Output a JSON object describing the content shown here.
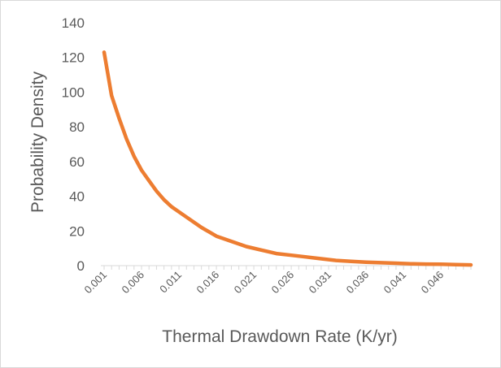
{
  "chart_data": {
    "type": "line",
    "title": "",
    "xlabel": "Thermal Drawdown Rate (K/yr)",
    "ylabel": "Probability Density",
    "ylim": [
      0,
      140
    ],
    "yticks": [
      "0",
      "20",
      "40",
      "60",
      "80",
      "100",
      "120",
      "140"
    ],
    "xlim": [
      0.001,
      0.05
    ],
    "xticks": [
      "0.001",
      "0.006",
      "0.011",
      "0.016",
      "0.021",
      "0.026",
      "0.031",
      "0.036",
      "0.041",
      "0.046"
    ],
    "grid": false,
    "series": [
      {
        "color": "#ED7D31",
        "x": [
          0.001,
          0.002,
          0.003,
          0.004,
          0.005,
          0.006,
          0.007,
          0.008,
          0.009,
          0.01,
          0.012,
          0.014,
          0.016,
          0.018,
          0.02,
          0.022,
          0.024,
          0.026,
          0.028,
          0.03,
          0.032,
          0.034,
          0.036,
          0.038,
          0.04,
          0.042,
          0.044,
          0.046,
          0.048,
          0.05
        ],
        "y": [
          123,
          98,
          85,
          73,
          63,
          55,
          49,
          43,
          38,
          34,
          28,
          22,
          17,
          14,
          11,
          9,
          7,
          6,
          5,
          4,
          3,
          2.5,
          2,
          1.7,
          1.4,
          1.1,
          0.9,
          0.8,
          0.6,
          0.4
        ]
      }
    ]
  }
}
